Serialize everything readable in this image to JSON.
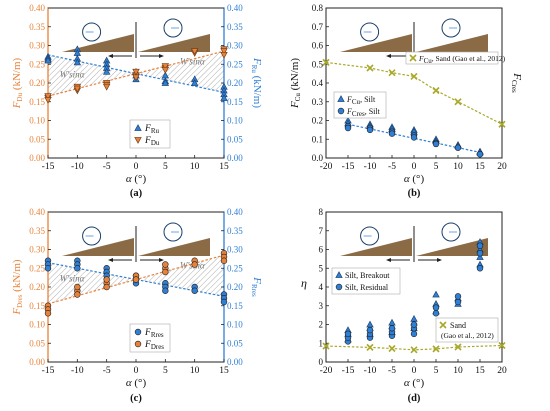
{
  "colors": {
    "orange": "#e8823a",
    "blue": "#2f7fd4",
    "black": "#111111",
    "olive": "#a8a82a",
    "slope": "#8b6b45",
    "hatch": "#9a9a9a"
  },
  "chart_data": [
    {
      "id": "a",
      "type": "scatter",
      "caption": "(a)",
      "xlabel": "α (°)",
      "ylabel_left": "F_Du (kN/m)",
      "ylabel_right": "F_Ru (kN/m)",
      "xlim": [
        -15,
        15
      ],
      "xticks": [
        -15,
        -10,
        -5,
        0,
        5,
        10,
        15
      ],
      "ylim": [
        0,
        0.4
      ],
      "yticks": [
        "0.00",
        "0.05",
        "0.10",
        "0.15",
        "0.20",
        "0.25",
        "0.30",
        "0.35",
        "0.40"
      ],
      "region_labels": [
        "W'sinα",
        "W'sinα"
      ],
      "legend": [
        "F_Ru",
        "F_Du"
      ],
      "series": [
        {
          "name": "F_Ru",
          "color": "#2f7fd4",
          "marker": "triangle-up",
          "x": [
            -15,
            -15,
            -15,
            -10,
            -10,
            -10,
            -10,
            -5,
            -5,
            -5,
            -5,
            0,
            0,
            0,
            5,
            5,
            5,
            10,
            10,
            15,
            15,
            15,
            15
          ],
          "y": [
            0.27,
            0.265,
            0.26,
            0.29,
            0.28,
            0.265,
            0.255,
            0.26,
            0.25,
            0.24,
            0.23,
            0.23,
            0.22,
            0.21,
            0.22,
            0.205,
            0.2,
            0.21,
            0.2,
            0.19,
            0.18,
            0.17,
            0.16
          ]
        },
        {
          "name": "F_Du",
          "color": "#e8823a",
          "marker": "triangle-down",
          "x": [
            -15,
            -15,
            -15,
            -10,
            -10,
            -10,
            -5,
            -5,
            -5,
            0,
            0,
            0,
            5,
            5,
            5,
            10,
            10,
            15,
            15,
            15
          ],
          "y": [
            0.16,
            0.165,
            0.155,
            0.19,
            0.18,
            0.185,
            0.2,
            0.195,
            0.19,
            0.22,
            0.215,
            0.23,
            0.24,
            0.245,
            0.235,
            0.28,
            0.285,
            0.29,
            0.285,
            0.275
          ]
        }
      ],
      "trend_lines": [
        {
          "color": "#e8823a",
          "x": [
            -15,
            15
          ],
          "y": [
            0.165,
            0.285
          ]
        },
        {
          "color": "#2f7fd4",
          "x": [
            -15,
            15
          ],
          "y": [
            0.275,
            0.175
          ]
        }
      ]
    },
    {
      "id": "b",
      "type": "scatter",
      "caption": "(b)",
      "xlabel": "α (°)",
      "ylabel_left": "F_Cu (kN/m)",
      "ylabel_right": "F_Cres",
      "xlim": [
        -20,
        20
      ],
      "xticks": [
        -20,
        -15,
        -10,
        -5,
        0,
        5,
        10,
        15,
        20
      ],
      "ylim": [
        0,
        0.8
      ],
      "yticks": [
        "0.0",
        "0.1",
        "0.2",
        "0.3",
        "0.4",
        "0.5",
        "0.6",
        "0.7",
        "0.8"
      ],
      "legend": [
        "F_Cu, Sand (Gao et al., 2012)",
        "F_Cu, Silt",
        "F_Cres, Silt"
      ],
      "series": [
        {
          "name": "F_Cu, Sand (Gao et al., 2012)",
          "color": "#a8a82a",
          "marker": "x",
          "x": [
            -20,
            -10,
            -5,
            0,
            5,
            10,
            20
          ],
          "y": [
            0.51,
            0.48,
            0.455,
            0.435,
            0.36,
            0.3,
            0.18
          ]
        },
        {
          "name": "F_Cu, Silt",
          "color": "#2f7fd4",
          "marker": "triangle-up",
          "x": [
            -15,
            -15,
            -10,
            -10,
            -5,
            -5,
            0,
            0,
            5,
            5,
            10,
            10,
            15,
            15
          ],
          "y": [
            0.2,
            0.185,
            0.18,
            0.17,
            0.165,
            0.155,
            0.15,
            0.14,
            0.1,
            0.09,
            0.07,
            0.065,
            0.035,
            0.03
          ]
        },
        {
          "name": "F_Cres, Silt",
          "color": "#2f7fd4",
          "marker": "circle",
          "x": [
            -15,
            -15,
            -10,
            -10,
            -5,
            -5,
            0,
            0,
            5,
            5,
            10,
            15
          ],
          "y": [
            0.17,
            0.16,
            0.16,
            0.15,
            0.14,
            0.13,
            0.12,
            0.11,
            0.08,
            0.075,
            0.055,
            0.02
          ]
        }
      ],
      "trend_lines": [
        {
          "color": "#a8a82a",
          "x": [
            -20,
            -10,
            -5,
            0,
            5,
            10,
            20
          ],
          "y": [
            0.51,
            0.48,
            0.455,
            0.435,
            0.36,
            0.3,
            0.18
          ]
        },
        {
          "color": "#2f7fd4",
          "x": [
            -15,
            15
          ],
          "y": [
            0.18,
            0.03
          ]
        }
      ]
    },
    {
      "id": "c",
      "type": "scatter",
      "caption": "(c)",
      "xlabel": "α (°)",
      "ylabel_left": "F_Dres (kN/m)",
      "ylabel_right": "F_Rres",
      "xlim": [
        -15,
        15
      ],
      "xticks": [
        -15,
        -10,
        -5,
        0,
        5,
        10,
        15
      ],
      "ylim": [
        0,
        0.4
      ],
      "yticks": [
        "0.00",
        "0.05",
        "0.10",
        "0.15",
        "0.20",
        "0.25",
        "0.30",
        "0.35",
        "0.40"
      ],
      "region_labels": [
        "W'sinα",
        "W'sinα"
      ],
      "legend": [
        "F_Rres",
        "F_Dres"
      ],
      "series": [
        {
          "name": "F_Rres",
          "color": "#2f7fd4",
          "marker": "circle",
          "x": [
            -15,
            -15,
            -15,
            -10,
            -10,
            -10,
            -5,
            -5,
            -5,
            0,
            0,
            0,
            5,
            5,
            5,
            10,
            10,
            15,
            15,
            15
          ],
          "y": [
            0.27,
            0.26,
            0.25,
            0.27,
            0.26,
            0.25,
            0.25,
            0.24,
            0.23,
            0.23,
            0.22,
            0.21,
            0.21,
            0.2,
            0.19,
            0.2,
            0.19,
            0.18,
            0.17,
            0.16
          ]
        },
        {
          "name": "F_Dres",
          "color": "#e8823a",
          "marker": "circle",
          "x": [
            -15,
            -15,
            -15,
            -10,
            -10,
            -10,
            -5,
            -5,
            -5,
            0,
            0,
            0,
            5,
            5,
            5,
            10,
            10,
            15,
            15,
            15
          ],
          "y": [
            0.15,
            0.14,
            0.13,
            0.19,
            0.18,
            0.2,
            0.21,
            0.2,
            0.22,
            0.22,
            0.23,
            0.22,
            0.25,
            0.26,
            0.24,
            0.27,
            0.26,
            0.29,
            0.28,
            0.27
          ]
        }
      ],
      "trend_lines": [
        {
          "color": "#e8823a",
          "x": [
            -15,
            15
          ],
          "y": [
            0.155,
            0.285
          ]
        },
        {
          "color": "#2f7fd4",
          "x": [
            -15,
            15
          ],
          "y": [
            0.265,
            0.175
          ]
        }
      ]
    },
    {
      "id": "d",
      "type": "scatter",
      "caption": "(d)",
      "xlabel": "α (°)",
      "ylabel_left": "η",
      "xlim": [
        -20,
        20
      ],
      "xticks": [
        -20,
        -15,
        -10,
        -5,
        0,
        5,
        10,
        15,
        20
      ],
      "ylim": [
        0,
        8
      ],
      "yticks": [
        "0",
        "1",
        "2",
        "3",
        "4",
        "5",
        "6",
        "7",
        "8"
      ],
      "legend": [
        "Silt, Breakout",
        "Silt, Residual",
        "Sand",
        "(Gao et al., 2012)"
      ],
      "series": [
        {
          "name": "Silt, Breakout",
          "color": "#2f7fd4",
          "marker": "triangle-up",
          "x": [
            -15,
            -15,
            -15,
            -10,
            -10,
            -10,
            -5,
            -5,
            -5,
            0,
            0,
            0,
            5,
            5,
            5,
            10,
            10,
            15,
            15,
            15,
            15
          ],
          "y": [
            1.2,
            1.5,
            1.7,
            1.5,
            1.8,
            2.0,
            1.6,
            1.9,
            2.1,
            1.8,
            2.1,
            2.3,
            2.7,
            3.1,
            3.6,
            3.1,
            3.4,
            5.2,
            5.6,
            6.0,
            6.4
          ]
        },
        {
          "name": "Silt, Residual",
          "color": "#2f7fd4",
          "marker": "circle",
          "x": [
            -15,
            -15,
            -15,
            -10,
            -10,
            -10,
            -5,
            -5,
            -5,
            0,
            0,
            0,
            5,
            5,
            10,
            10,
            15,
            15,
            15
          ],
          "y": [
            1.1,
            1.3,
            1.5,
            1.3,
            1.5,
            1.7,
            1.4,
            1.6,
            1.8,
            1.5,
            1.8,
            2.0,
            2.6,
            2.9,
            3.2,
            3.5,
            5.0,
            5.8,
            6.2
          ]
        },
        {
          "name": "Sand",
          "color": "#a8a82a",
          "marker": "x",
          "x": [
            -20,
            -10,
            -5,
            0,
            5,
            10,
            20
          ],
          "y": [
            0.85,
            0.78,
            0.72,
            0.65,
            0.7,
            0.8,
            0.88
          ]
        }
      ],
      "trend_lines": [
        {
          "color": "#a8a82a",
          "x": [
            -20,
            -10,
            -5,
            0,
            5,
            10,
            20
          ],
          "y": [
            0.85,
            0.78,
            0.72,
            0.65,
            0.7,
            0.8,
            0.88
          ]
        }
      ]
    }
  ]
}
